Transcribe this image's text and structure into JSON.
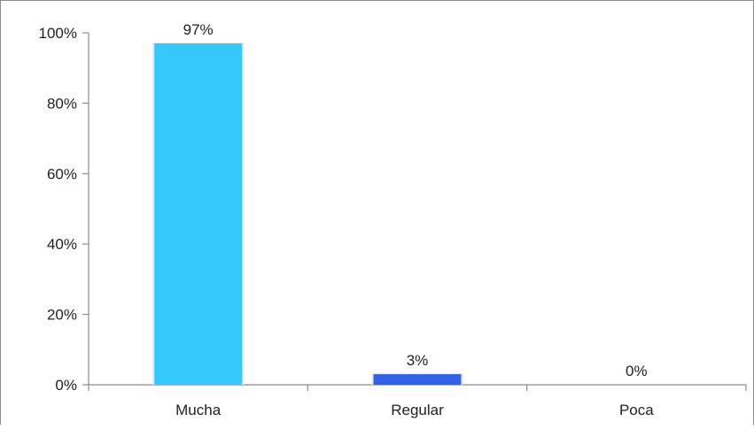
{
  "chart_data": {
    "type": "bar",
    "categories": [
      "Mucha",
      "Regular",
      "Poca"
    ],
    "values": [
      97,
      3,
      0
    ],
    "data_labels": [
      "97%",
      "3%",
      "0%"
    ],
    "title": "",
    "xlabel": "",
    "ylabel": "",
    "ylim": [
      0,
      100
    ],
    "yticks": [
      0,
      20,
      40,
      60,
      80,
      100
    ],
    "ytick_labels": [
      "0%",
      "20%",
      "40%",
      "60%",
      "80%",
      "100%"
    ],
    "bar_colors": [
      "#33c9fb",
      "#3162e8",
      "#3162e8"
    ],
    "grid": false,
    "legend": "none"
  }
}
